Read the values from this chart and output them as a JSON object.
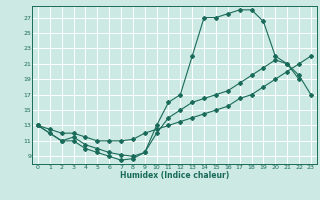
{
  "bg_color": "#cce9e4",
  "line_color": "#1a6b5a",
  "grid_color": "#ffffff",
  "xlabel": "Humidex (Indice chaleur)",
  "xlim": [
    -0.5,
    23.5
  ],
  "ylim": [
    8.0,
    28.5
  ],
  "yticks": [
    9,
    11,
    13,
    15,
    17,
    19,
    21,
    23,
    25,
    27
  ],
  "xticks": [
    0,
    1,
    2,
    3,
    4,
    5,
    6,
    7,
    8,
    9,
    10,
    11,
    12,
    13,
    14,
    15,
    16,
    17,
    18,
    19,
    20,
    21,
    22,
    23
  ],
  "line1_x": [
    0,
    1,
    2,
    3,
    4,
    5,
    6,
    7,
    8,
    9,
    10,
    11,
    12,
    13,
    14,
    15,
    16,
    17,
    18,
    19,
    20,
    21,
    22
  ],
  "line1_y": [
    13,
    12,
    11,
    11,
    10,
    9.5,
    9,
    8.5,
    8.7,
    9.5,
    13,
    16,
    17,
    22,
    27,
    27,
    27.5,
    28,
    28,
    26.5,
    22,
    21,
    19
  ],
  "line2_x": [
    0,
    2,
    3,
    4,
    5,
    6,
    7,
    8,
    9,
    10,
    11,
    12,
    13,
    14,
    15,
    16,
    17,
    18,
    19,
    20,
    21,
    22,
    23
  ],
  "line2_y": [
    13,
    11,
    11.5,
    10.5,
    10,
    9.5,
    9.2,
    9,
    9.5,
    12,
    14,
    15,
    16,
    16.5,
    17,
    17.5,
    18.5,
    19.5,
    20.5,
    21.5,
    21,
    19.5,
    17
  ],
  "line3_x": [
    0,
    1,
    2,
    3,
    4,
    5,
    6,
    7,
    8,
    9,
    10,
    11,
    12,
    13,
    14,
    15,
    16,
    17,
    18,
    19,
    20,
    21,
    22,
    23
  ],
  "line3_y": [
    13,
    12.5,
    12,
    12,
    11.5,
    11,
    11,
    11,
    11.2,
    12,
    12.5,
    13,
    13.5,
    14,
    14.5,
    15,
    15.5,
    16.5,
    17,
    18,
    19,
    20,
    21,
    22
  ]
}
